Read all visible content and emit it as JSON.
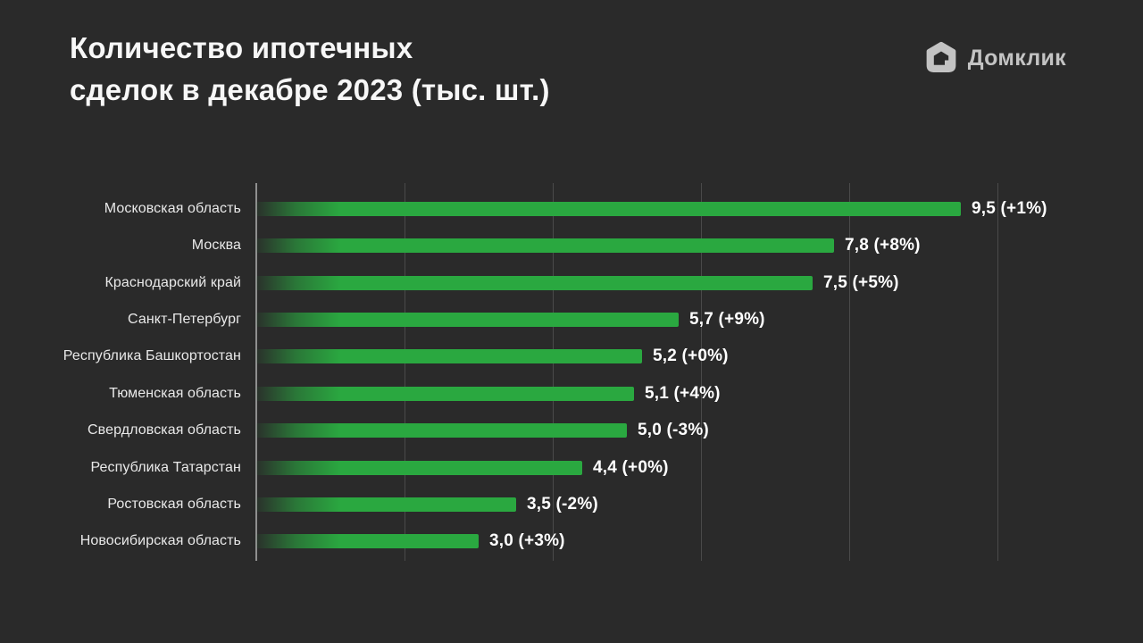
{
  "header": {
    "title_line1": "Количество ипотечных",
    "title_line2": "сделок в декабре 2023 (тыс. шт.)",
    "logo_text": "Домклик"
  },
  "colors": {
    "background": "#2a2a2a",
    "title_text": "#f7f7f7",
    "logo_gray": "#c3c3c3",
    "gridline": "#4a4a4a",
    "axis_line": "#8f8f8f",
    "category_text": "#e9e9e9",
    "value_text": "#ffffff",
    "bar_green": "#2aa840",
    "bar_gradient": [
      "rgba(42,168,64,0.05)",
      "rgba(42,168,64,0.62)",
      "#2aa840"
    ]
  },
  "chart_data": {
    "type": "bar",
    "orientation": "horizontal",
    "title": "Количество ипотечных сделок в декабре 2023 (тыс. шт.)",
    "unit": "тыс. шт.",
    "xlim": [
      0,
      10
    ],
    "gridline_step": 2,
    "grid": "vertical-lines, no tick labels",
    "legend": "none",
    "categories": [
      "Московская область",
      "Москва",
      "Краснодарский край",
      "Санкт-Петербург",
      "Республика Башкортостан",
      "Тюменская область",
      "Свердловская область",
      "Республика Татарстан",
      "Ростовская область",
      "Новосибирская область"
    ],
    "values": [
      9.5,
      7.8,
      7.5,
      5.7,
      5.2,
      5.1,
      5.0,
      4.4,
      3.5,
      3.0
    ],
    "change_percent": [
      1,
      8,
      5,
      9,
      0,
      4,
      -3,
      0,
      -2,
      3
    ],
    "value_labels": [
      "9,5 (+1%)",
      "7,8 (+8%)",
      "7,5 (+5%)",
      "5,7 (+9%)",
      "5,2 (+0%)",
      "5,1 (+4%)",
      "5,0 (-3%)",
      "4,4 (+0%)",
      "3,5 (-2%)",
      "3,0 (+3%)"
    ]
  }
}
